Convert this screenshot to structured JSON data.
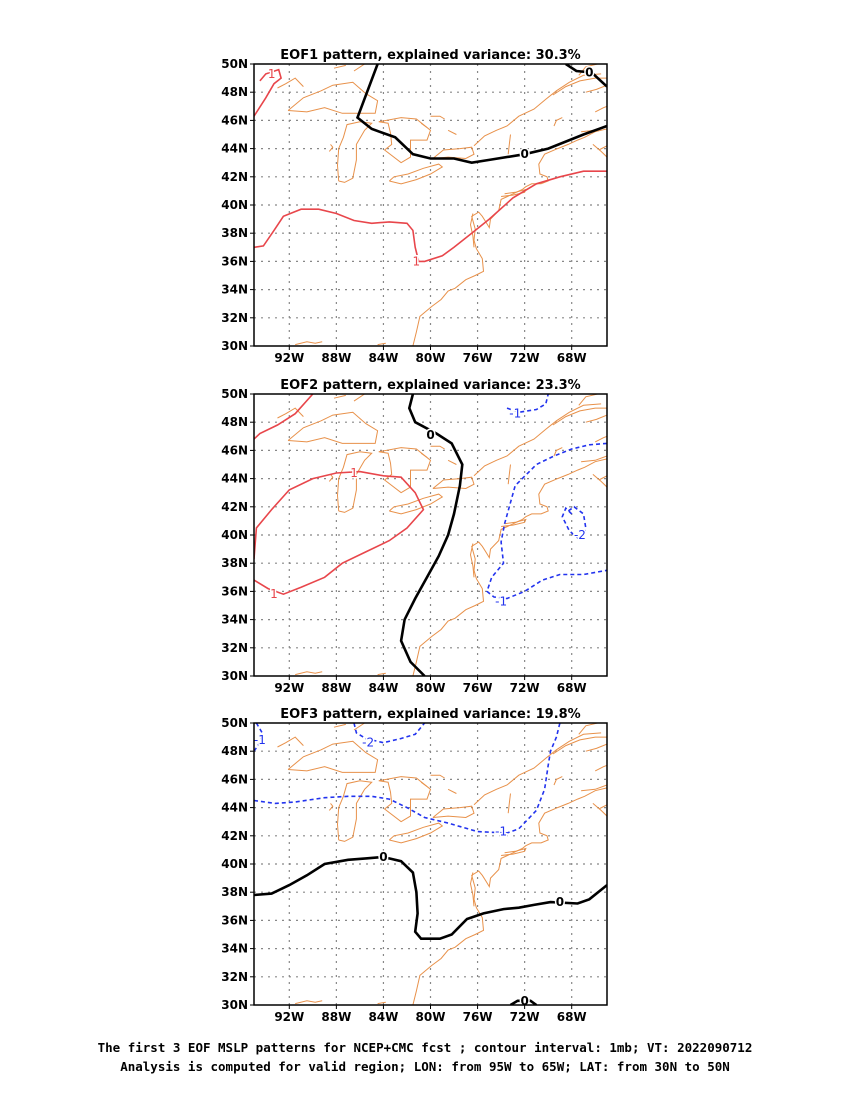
{
  "panels": [
    {
      "title": "EOF1 pattern, explained variance: 30.3%",
      "contours": [
        {
          "value": "0",
          "style": "zero",
          "points": [
            [
              -84.5,
              50
            ],
            [
              -86.2,
              46.2
            ],
            [
              -85,
              45.4
            ],
            [
              -83,
              44.8
            ],
            [
              -81.5,
              43.6
            ],
            [
              -80,
              43.3
            ],
            [
              -78,
              43.3
            ],
            [
              -76.5,
              43
            ],
            [
              -75,
              43.2
            ],
            [
              -72,
              43.6
            ],
            [
              -70,
              44
            ],
            [
              -67,
              45
            ],
            [
              -65,
              45.6
            ]
          ],
          "labels": [
            [
              -72,
              43.6
            ]
          ]
        },
        {
          "value": "0",
          "style": "zero",
          "points": [
            [
              -68.5,
              50
            ],
            [
              -67.6,
              49.5
            ],
            [
              -66.3,
              49.4
            ],
            [
              -65.4,
              48.7
            ],
            [
              -65,
              48.4
            ]
          ],
          "labels": [
            [
              -66.5,
              49.4
            ]
          ]
        },
        {
          "value": "1",
          "style": "pos",
          "points": [
            [
              -95,
              46.3
            ],
            [
              -94,
              47.6
            ],
            [
              -93.3,
              48.6
            ],
            [
              -92.7,
              49
            ],
            [
              -92.9,
              49.6
            ],
            [
              -94,
              49.3
            ],
            [
              -94.5,
              48.8
            ]
          ],
          "labels": [
            [
              -93.5,
              49.3
            ]
          ]
        },
        {
          "value": "1",
          "style": "pos",
          "points": [
            [
              -95,
              37
            ],
            [
              -94.2,
              37.1
            ],
            [
              -93.3,
              38.2
            ],
            [
              -92.5,
              39.2
            ],
            [
              -91,
              39.7
            ],
            [
              -89.5,
              39.7
            ],
            [
              -88,
              39.4
            ],
            [
              -86.5,
              38.9
            ],
            [
              -85,
              38.7
            ],
            [
              -83.5,
              38.8
            ],
            [
              -82,
              38.7
            ],
            [
              -81.5,
              38.2
            ],
            [
              -81.3,
              37
            ],
            [
              -81,
              36
            ],
            [
              -80.5,
              36
            ],
            [
              -79,
              36.4
            ],
            [
              -78,
              37
            ],
            [
              -76.5,
              38
            ],
            [
              -75,
              39
            ],
            [
              -73,
              40.5
            ],
            [
              -71,
              41.5
            ],
            [
              -69,
              42
            ],
            [
              -67,
              42.4
            ],
            [
              -65,
              42.4
            ]
          ],
          "labels": [
            [
              -81.2,
              36
            ]
          ]
        }
      ]
    },
    {
      "title": "EOF2 pattern, explained variance: 23.3%",
      "contours": [
        {
          "value": "0",
          "style": "zero",
          "points": [
            [
              -81.5,
              50
            ],
            [
              -81.8,
              49
            ],
            [
              -81.3,
              48
            ],
            [
              -79.5,
              47.2
            ],
            [
              -78.2,
              46.5
            ],
            [
              -77.3,
              45
            ],
            [
              -77.5,
              43.5
            ],
            [
              -78,
              41.5
            ],
            [
              -78.5,
              40
            ],
            [
              -79.3,
              38.5
            ],
            [
              -80.3,
              37
            ],
            [
              -81.3,
              35.5
            ],
            [
              -82.2,
              34
            ],
            [
              -82.5,
              32.5
            ],
            [
              -81.7,
              31
            ],
            [
              -80.5,
              30
            ]
          ],
          "labels": [
            [
              -80,
              47.1
            ]
          ]
        },
        {
          "value": "1",
          "style": "pos",
          "points": [
            [
              -95,
              46.8
            ],
            [
              -94.5,
              47.2
            ],
            [
              -93,
              47.8
            ],
            [
              -91.5,
              48.6
            ],
            [
              -90,
              50
            ]
          ],
          "labels": []
        },
        {
          "value": "1",
          "style": "pos",
          "points": [
            [
              -95,
              38.3
            ],
            [
              -94.8,
              40.5
            ],
            [
              -93.5,
              41.8
            ],
            [
              -92,
              43.2
            ],
            [
              -90,
              44
            ],
            [
              -88,
              44.4
            ],
            [
              -86,
              44.5
            ],
            [
              -84,
              44.2
            ],
            [
              -82.5,
              44.1
            ],
            [
              -81.3,
              43
            ],
            [
              -80.6,
              41.8
            ],
            [
              -82,
              40.5
            ],
            [
              -83.5,
              39.6
            ],
            [
              -85.5,
              38.8
            ],
            [
              -87.5,
              38
            ],
            [
              -89,
              37
            ],
            [
              -91,
              36.3
            ],
            [
              -92.5,
              35.8
            ],
            [
              -93.8,
              36.2
            ],
            [
              -95,
              36.8
            ]
          ],
          "labels": [
            [
              -86.5,
              44.4
            ],
            [
              -93.3,
              35.8
            ]
          ]
        },
        {
          "value": "-1",
          "style": "neg",
          "points": [
            [
              -73.5,
              49
            ],
            [
              -72.5,
              48.7
            ],
            [
              -71,
              48.9
            ],
            [
              -70.2,
              49.3
            ],
            [
              -70,
              50
            ]
          ],
          "labels": [
            [
              -72.8,
              48.6
            ]
          ]
        },
        {
          "value": "-1",
          "style": "neg",
          "points": [
            [
              -65,
              46.5
            ],
            [
              -66.5,
              46.4
            ],
            [
              -68,
              46.1
            ],
            [
              -69.5,
              45.6
            ],
            [
              -71,
              45
            ],
            [
              -72.2,
              44
            ],
            [
              -72.8,
              43.5
            ],
            [
              -73.3,
              42
            ],
            [
              -73.7,
              40.8
            ],
            [
              -74,
              39.5
            ],
            [
              -73.8,
              38
            ],
            [
              -74.8,
              37
            ],
            [
              -75.2,
              36
            ],
            [
              -74.6,
              35.6
            ],
            [
              -73.5,
              35.5
            ],
            [
              -72,
              36
            ],
            [
              -70.5,
              36.8
            ],
            [
              -69,
              37.2
            ],
            [
              -67,
              37.2
            ],
            [
              -65,
              37.5
            ]
          ],
          "labels": [
            [
              -74,
              35.3
            ]
          ]
        },
        {
          "value": "-2",
          "style": "neg",
          "points": [
            [
              -68,
              41.5
            ],
            [
              -68.5,
              41.9
            ],
            [
              -68.8,
              41.3
            ],
            [
              -68.2,
              40.3
            ],
            [
              -67.8,
              40
            ],
            [
              -67.2,
              39.6
            ],
            [
              -66.8,
              40.5
            ],
            [
              -67,
              41.5
            ],
            [
              -67.8,
              42
            ],
            [
              -68.3,
              41.7
            ]
          ],
          "labels": [
            [
              -67.3,
              40
            ]
          ]
        }
      ]
    },
    {
      "title": "EOF3 pattern, explained variance: 19.8%",
      "contours": [
        {
          "value": "0",
          "style": "zero",
          "points": [
            [
              -95,
              37.8
            ],
            [
              -93.5,
              37.9
            ],
            [
              -92,
              38.5
            ],
            [
              -90.5,
              39.2
            ],
            [
              -89,
              40
            ],
            [
              -87,
              40.3
            ],
            [
              -85.5,
              40.4
            ],
            [
              -84,
              40.5
            ],
            [
              -82.5,
              40.2
            ],
            [
              -81.5,
              39.4
            ],
            [
              -81.2,
              38
            ],
            [
              -81.1,
              36.5
            ],
            [
              -81.3,
              35.2
            ],
            [
              -80.8,
              34.7
            ],
            [
              -79.2,
              34.7
            ],
            [
              -78.2,
              35
            ],
            [
              -76.9,
              36.1
            ],
            [
              -75.5,
              36.5
            ],
            [
              -73.8,
              36.8
            ],
            [
              -72.5,
              36.9
            ],
            [
              -71.2,
              37.1
            ],
            [
              -69.8,
              37.3
            ],
            [
              -67.5,
              37.2
            ],
            [
              -66.5,
              37.5
            ],
            [
              -65,
              38.5
            ]
          ],
          "labels": [
            [
              -84,
              40.5
            ],
            [
              -69,
              37.3
            ]
          ]
        },
        {
          "value": "0",
          "style": "zero",
          "points": [
            [
              -73.2,
              30
            ],
            [
              -72.6,
              30.3
            ],
            [
              -71.5,
              30.3
            ],
            [
              -71,
              30
            ]
          ],
          "labels": [
            [
              -72,
              30.3
            ]
          ]
        },
        {
          "value": "-1",
          "style": "neg",
          "points": [
            [
              -95,
              48
            ],
            [
              -94.5,
              48.6
            ],
            [
              -94.3,
              49.3
            ],
            [
              -94.8,
              50
            ]
          ],
          "labels": [
            [
              -94.5,
              48.8
            ]
          ]
        },
        {
          "value": "-1",
          "style": "neg",
          "points": [
            [
              -95,
              44.5
            ],
            [
              -93.2,
              44.3
            ],
            [
              -91.5,
              44.4
            ],
            [
              -89,
              44.7
            ],
            [
              -87,
              44.8
            ],
            [
              -85,
              44.8
            ],
            [
              -83.5,
              44.6
            ],
            [
              -82,
              44
            ],
            [
              -80.5,
              43.3
            ],
            [
              -78.5,
              42.9
            ],
            [
              -76,
              42.3
            ],
            [
              -73.5,
              42.2
            ],
            [
              -72.5,
              42.5
            ],
            [
              -71,
              43.8
            ],
            [
              -70.3,
              45.3
            ],
            [
              -70,
              47
            ],
            [
              -69.8,
              48
            ],
            [
              -69.3,
              49
            ],
            [
              -69,
              50
            ]
          ],
          "labels": [
            [
              -74,
              42.3
            ]
          ]
        },
        {
          "value": "-2",
          "style": "neg",
          "points": [
            [
              -86.5,
              50
            ],
            [
              -86.3,
              49.3
            ],
            [
              -85.5,
              48.9
            ],
            [
              -84,
              48.6
            ],
            [
              -82.5,
              48.9
            ],
            [
              -81.3,
              49.2
            ],
            [
              -80.5,
              50
            ]
          ],
          "labels": [
            [
              -85.3,
              48.6
            ]
          ]
        }
      ]
    }
  ],
  "x_ticks": [
    "92W",
    "88W",
    "84W",
    "80W",
    "76W",
    "72W",
    "68W"
  ],
  "y_ticks": [
    "50N",
    "48N",
    "46N",
    "44N",
    "42N",
    "40N",
    "38N",
    "36N",
    "34N",
    "32N",
    "30N"
  ],
  "colors": {
    "positive": "#e8464b",
    "negative": "#2233ee",
    "zero": "#000000",
    "coast": "#e8914a",
    "grid": "#888888"
  },
  "caption": {
    "line1": "The first 3 EOF MSLP patterns for NCEP+CMC fcst ; contour interval: 1mb; VT: 2022090712",
    "line2": "Analysis is computed for valid region; LON: from 95W to 65W; LAT: from 30N to 50N"
  }
}
